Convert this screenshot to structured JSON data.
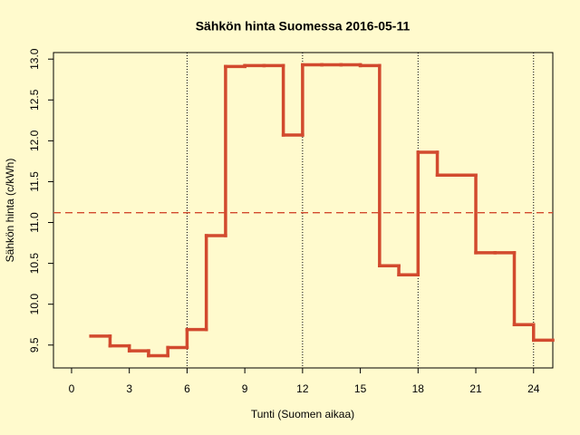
{
  "chart_data": {
    "type": "step",
    "title": "Sähkön hinta Suomessa 2016-05-11",
    "x_label": "Tunti (Suomen aikaa)",
    "y_label": "Sähkön hinta (c/kWh)",
    "x": [
      1,
      2,
      3,
      4,
      5,
      6,
      7,
      8,
      9,
      10,
      11,
      12,
      13,
      14,
      15,
      16,
      17,
      18,
      19,
      20,
      21,
      22,
      23,
      24
    ],
    "values": [
      9.61,
      9.49,
      9.43,
      9.37,
      9.47,
      9.69,
      10.84,
      12.91,
      12.92,
      12.92,
      12.07,
      12.93,
      12.93,
      12.93,
      12.92,
      10.47,
      10.36,
      11.86,
      11.58,
      11.58,
      10.63,
      10.63,
      9.75,
      9.56
    ],
    "color": "#d24a2e",
    "mean_line": 11.12,
    "mean_color": "#d24a2e",
    "vlines": [
      6,
      12,
      18,
      24
    ],
    "xlim": [
      -0.94,
      25
    ],
    "ylim": [
      9.22,
      13.08
    ],
    "xticks": [
      0,
      3,
      6,
      9,
      12,
      15,
      18,
      21,
      24
    ],
    "yticks": [
      {
        "value": 9.5,
        "label": "9.5"
      },
      {
        "value": 10,
        "label": "10.0"
      },
      {
        "value": 10.5,
        "label": "10.5"
      },
      {
        "value": 11,
        "label": "11.0"
      },
      {
        "value": 11.5,
        "label": "11.5"
      },
      {
        "value": 12,
        "label": "12.0"
      },
      {
        "value": 12.5,
        "label": "12.5"
      },
      {
        "value": 13,
        "label": "13.0"
      }
    ]
  }
}
